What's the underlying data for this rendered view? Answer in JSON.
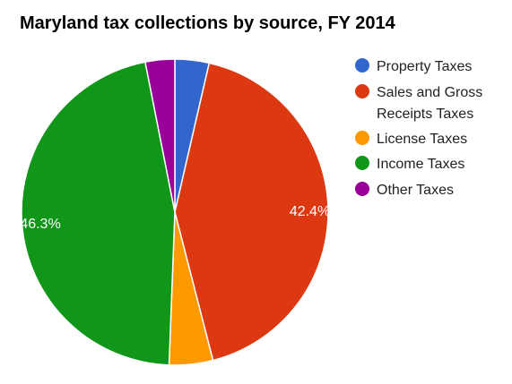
{
  "chart_data": {
    "type": "pie",
    "title": "Maryland tax collections by source, FY 2014",
    "legend_position": "right",
    "categories": [
      "Property Taxes",
      "Sales and Gross Receipts Taxes",
      "License Taxes",
      "Income Taxes",
      "Other Taxes"
    ],
    "legend_lines": [
      [
        "Property Taxes"
      ],
      [
        "Sales and Gross",
        "Receipts Taxes"
      ],
      [
        "License Taxes"
      ],
      [
        "Income Taxes"
      ],
      [
        "Other Taxes"
      ]
    ],
    "values": [
      3.6,
      42.4,
      4.6,
      46.3,
      3.1
    ],
    "data_labels": [
      "",
      "42.4%",
      "",
      "46.3%",
      ""
    ],
    "colors": [
      "#3366cc",
      "#dc3912",
      "#ff9900",
      "#109618",
      "#990099"
    ]
  }
}
